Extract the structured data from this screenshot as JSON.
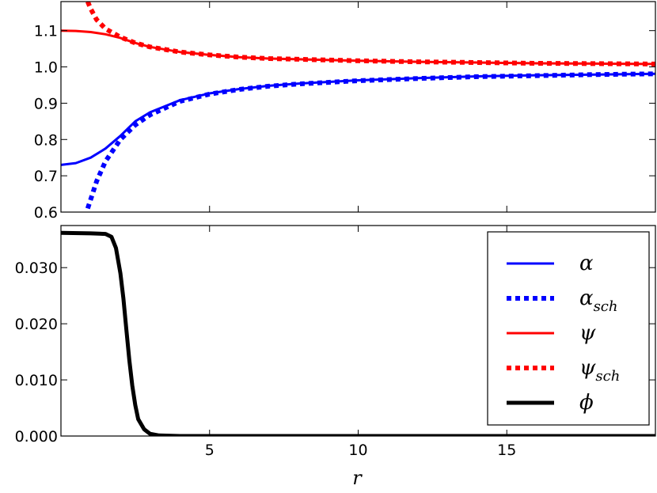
{
  "chart_data": [
    {
      "type": "line",
      "title": "",
      "xlabel": "",
      "ylabel": "",
      "xlim": [
        0,
        20
      ],
      "ylim": [
        0.6,
        1.18
      ],
      "yticks": [
        "0.6",
        "0.7",
        "0.8",
        "0.9",
        "1.0",
        "1.1"
      ],
      "series": [
        {
          "name": "α",
          "color": "#0000ff",
          "style": "solid",
          "x": [
            0,
            0.5,
            1,
            1.5,
            2,
            2.5,
            3,
            4,
            5,
            6,
            7,
            8,
            10,
            12,
            14,
            16,
            18,
            20
          ],
          "y": [
            0.73,
            0.735,
            0.75,
            0.775,
            0.81,
            0.85,
            0.875,
            0.908,
            0.927,
            0.939,
            0.948,
            0.954,
            0.963,
            0.969,
            0.974,
            0.977,
            0.979,
            0.981
          ]
        },
        {
          "name": "α_sch",
          "color": "#0000ff",
          "style": "dotted",
          "x": [
            0.9,
            1,
            1.2,
            1.5,
            2,
            2.5,
            3,
            4,
            5,
            6,
            7,
            8,
            10,
            12,
            14,
            16,
            18,
            20
          ],
          "y": [
            0.61,
            0.635,
            0.685,
            0.74,
            0.8,
            0.84,
            0.868,
            0.905,
            0.925,
            0.938,
            0.947,
            0.953,
            0.962,
            0.968,
            0.973,
            0.976,
            0.979,
            0.981
          ]
        },
        {
          "name": "ψ",
          "color": "#ff0000",
          "style": "solid",
          "x": [
            0,
            0.5,
            1,
            1.5,
            2,
            2.5,
            3,
            4,
            5,
            6,
            7,
            8,
            10,
            12,
            14,
            16,
            18,
            20
          ],
          "y": [
            1.1,
            1.099,
            1.096,
            1.09,
            1.08,
            1.066,
            1.055,
            1.041,
            1.033,
            1.027,
            1.023,
            1.021,
            1.017,
            1.014,
            1.012,
            1.01,
            1.009,
            1.008
          ]
        },
        {
          "name": "ψ_sch",
          "color": "#ff0000",
          "style": "dotted",
          "x": [
            0.9,
            1,
            1.2,
            1.5,
            2,
            2.5,
            3,
            4,
            5,
            6,
            7,
            8,
            10,
            12,
            14,
            16,
            18,
            20
          ],
          "y": [
            1.18,
            1.16,
            1.13,
            1.105,
            1.082,
            1.066,
            1.055,
            1.041,
            1.033,
            1.027,
            1.023,
            1.021,
            1.017,
            1.014,
            1.012,
            1.01,
            1.009,
            1.008
          ]
        }
      ]
    },
    {
      "type": "line",
      "title": "",
      "xlabel": "r",
      "ylabel": "",
      "xlim": [
        0,
        20
      ],
      "ylim": [
        0,
        0.0375
      ],
      "xticks": [
        "5",
        "10",
        "15"
      ],
      "yticks": [
        "0.000",
        "0.010",
        "0.020",
        "0.030"
      ],
      "legend_placement": "right",
      "legend": [
        {
          "label": "α",
          "sub": "",
          "color": "#0000ff",
          "style": "solid"
        },
        {
          "label": "α",
          "sub": "sch",
          "color": "#0000ff",
          "style": "dotted"
        },
        {
          "label": "ψ",
          "sub": "",
          "color": "#ff0000",
          "style": "solid"
        },
        {
          "label": "ψ",
          "sub": "sch",
          "color": "#ff0000",
          "style": "dotted"
        },
        {
          "label": "ϕ",
          "sub": "",
          "color": "#000000",
          "style": "thick"
        }
      ],
      "series": [
        {
          "name": "ϕ",
          "color": "#000000",
          "style": "thick",
          "x": [
            0,
            1,
            1.5,
            1.7,
            1.85,
            2.0,
            2.1,
            2.2,
            2.3,
            2.4,
            2.5,
            2.6,
            2.8,
            3.0,
            3.3,
            4,
            20
          ],
          "y": [
            0.0362,
            0.0361,
            0.036,
            0.0355,
            0.0335,
            0.029,
            0.0245,
            0.019,
            0.0135,
            0.009,
            0.0055,
            0.003,
            0.0012,
            0.0004,
            0.0001,
            0,
            0
          ]
        }
      ]
    }
  ]
}
